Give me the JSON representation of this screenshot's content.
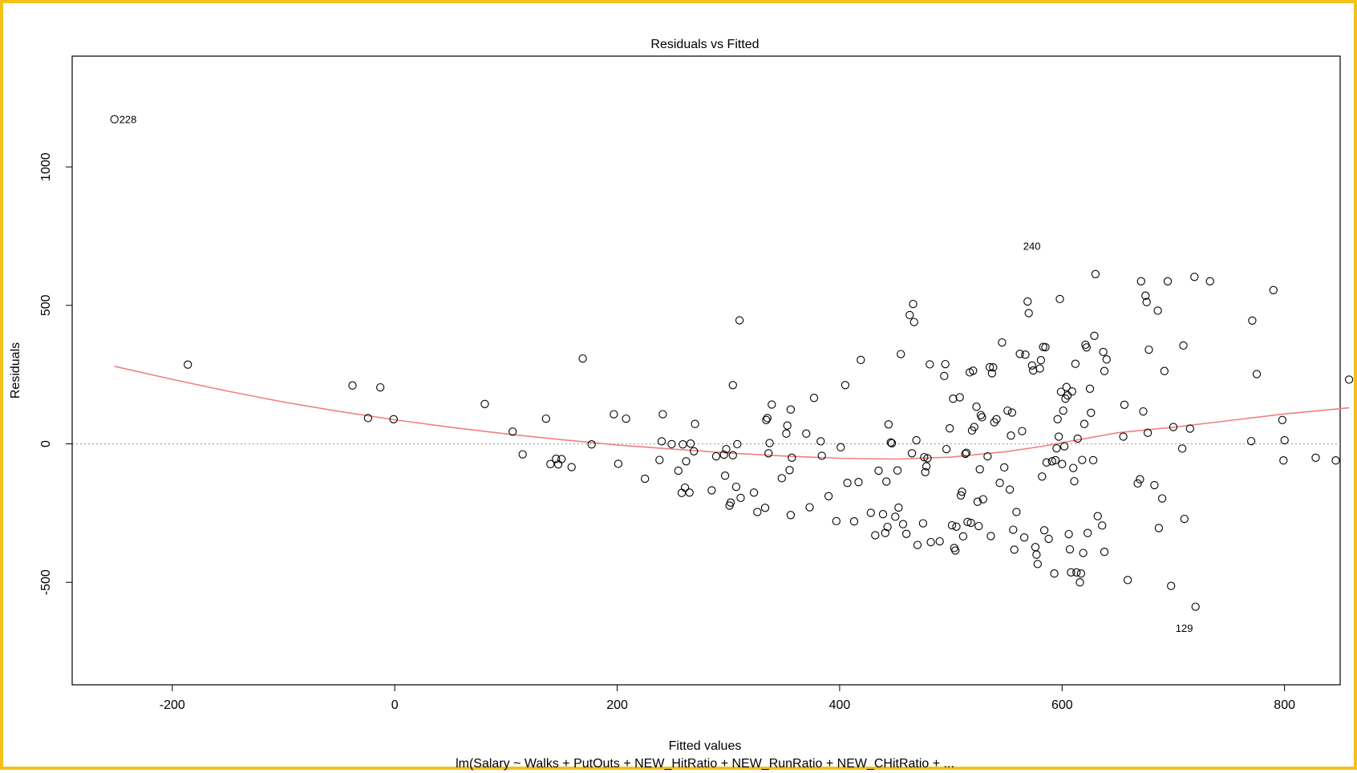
{
  "chart_data": {
    "type": "scatter",
    "title": "Residuals vs Fitted",
    "xlabel": "Fitted values",
    "ylabel": "Residuals",
    "subtitle": "lm(Salary ~ Walks + PutOuts + NEW_HitRatio + NEW_RunRatio + NEW_CHitRatio + ...",
    "xlim": [
      -290,
      850
    ],
    "ylim": [
      -870,
      1400
    ],
    "x_ticks": [
      -200,
      0,
      200,
      400,
      600,
      800
    ],
    "y_ticks": [
      -500,
      0,
      500,
      1000
    ],
    "tick_labels_x": [
      "-200",
      "0",
      "200",
      "400",
      "600",
      "800"
    ],
    "tick_labels_y": [
      "-500",
      "0",
      "500",
      "1000"
    ],
    "reference_line": 0,
    "colors": {
      "points": "#000000",
      "smoother": "#f08080",
      "reference": "#999999",
      "border": "#f2c21b"
    },
    "labeled_points": [
      {
        "label": "228",
        "x": -252,
        "y": 1172
      },
      {
        "label": "240",
        "x": 585,
        "y": 715
      },
      {
        "label": "129",
        "x": 722,
        "y": -635
      }
    ],
    "points": [
      [
        -252,
        1172
      ],
      [
        -186,
        286
      ],
      [
        -38,
        211
      ],
      [
        -24,
        93
      ],
      [
        -13,
        204
      ],
      [
        -1,
        89
      ],
      [
        81,
        144
      ],
      [
        106,
        44
      ],
      [
        115,
        -38
      ],
      [
        136,
        91
      ],
      [
        140,
        -73
      ],
      [
        145,
        -54
      ],
      [
        147,
        -74
      ],
      [
        150,
        -55
      ],
      [
        159,
        -84
      ],
      [
        169,
        308
      ],
      [
        177,
        -2
      ],
      [
        197,
        107
      ],
      [
        201,
        -72
      ],
      [
        208,
        91
      ],
      [
        225,
        -126
      ],
      [
        238,
        -58
      ],
      [
        240,
        9
      ],
      [
        241,
        107
      ],
      [
        249,
        -1
      ],
      [
        255,
        -97
      ],
      [
        258,
        -177
      ],
      [
        259,
        -2
      ],
      [
        261,
        -158
      ],
      [
        262,
        -63
      ],
      [
        265,
        -176
      ],
      [
        266,
        1
      ],
      [
        269,
        -27
      ],
      [
        270,
        72
      ],
      [
        285,
        -168
      ],
      [
        289,
        -45
      ],
      [
        296,
        -39
      ],
      [
        297,
        -115
      ],
      [
        298,
        -19
      ],
      [
        301,
        -223
      ],
      [
        302,
        -212
      ],
      [
        304,
        -41
      ],
      [
        304,
        212
      ],
      [
        307,
        -155
      ],
      [
        308,
        -1
      ],
      [
        310,
        446
      ],
      [
        311,
        -195
      ],
      [
        323,
        -176
      ],
      [
        326,
        -246
      ],
      [
        333,
        -231
      ],
      [
        334,
        86
      ],
      [
        335,
        93
      ],
      [
        336,
        -34
      ],
      [
        337,
        3
      ],
      [
        339,
        142
      ],
      [
        348,
        -124
      ],
      [
        352,
        37
      ],
      [
        353,
        66
      ],
      [
        355,
        -95
      ],
      [
        356,
        124
      ],
      [
        356,
        -257
      ],
      [
        357,
        -50
      ],
      [
        370,
        37
      ],
      [
        373,
        -229
      ],
      [
        377,
        166
      ],
      [
        383,
        9
      ],
      [
        384,
        -43
      ],
      [
        390,
        -189
      ],
      [
        397,
        -279
      ],
      [
        401,
        -12
      ],
      [
        405,
        212
      ],
      [
        407,
        -141
      ],
      [
        413,
        -280
      ],
      [
        417,
        -138
      ],
      [
        419,
        303
      ],
      [
        428,
        -249
      ],
      [
        432,
        -330
      ],
      [
        435,
        -97
      ],
      [
        439,
        -254
      ],
      [
        441,
        -322
      ],
      [
        442,
        -136
      ],
      [
        443,
        -300
      ],
      [
        444,
        70
      ],
      [
        446,
        5
      ],
      [
        447,
        2
      ],
      [
        450,
        -263
      ],
      [
        452,
        -96
      ],
      [
        453,
        -230
      ],
      [
        455,
        324
      ],
      [
        457,
        -290
      ],
      [
        460,
        -325
      ],
      [
        463,
        465
      ],
      [
        465,
        -34
      ],
      [
        466,
        505
      ],
      [
        467,
        440
      ],
      [
        469,
        13
      ],
      [
        470,
        -365
      ],
      [
        475,
        -287
      ],
      [
        476,
        -48
      ],
      [
        477,
        -102
      ],
      [
        478,
        -81
      ],
      [
        479,
        -52
      ],
      [
        481,
        287
      ],
      [
        482,
        -355
      ],
      [
        490,
        -352
      ],
      [
        494,
        245
      ],
      [
        495,
        288
      ],
      [
        496,
        -19
      ],
      [
        499,
        56
      ],
      [
        501,
        -294
      ],
      [
        502,
        163
      ],
      [
        503,
        -376
      ],
      [
        504,
        -385
      ],
      [
        505,
        -299
      ],
      [
        508,
        168
      ],
      [
        509,
        -186
      ],
      [
        510,
        -173
      ],
      [
        511,
        -334
      ],
      [
        513,
        -36
      ],
      [
        514,
        -32
      ],
      [
        515,
        -282
      ],
      [
        517,
        258
      ],
      [
        518,
        -285
      ],
      [
        519,
        48
      ],
      [
        520,
        264
      ],
      [
        521,
        61
      ],
      [
        523,
        134
      ],
      [
        524,
        -209
      ],
      [
        525,
        -297
      ],
      [
        526,
        -92
      ],
      [
        527,
        104
      ],
      [
        528,
        96
      ],
      [
        529,
        -200
      ],
      [
        533,
        -45
      ],
      [
        535,
        277
      ],
      [
        536,
        -333
      ],
      [
        537,
        255
      ],
      [
        538,
        276
      ],
      [
        539,
        78
      ],
      [
        541,
        89
      ],
      [
        544,
        -141
      ],
      [
        546,
        366
      ],
      [
        548,
        -85
      ],
      [
        551,
        120
      ],
      [
        553,
        -165
      ],
      [
        554,
        30
      ],
      [
        555,
        113
      ],
      [
        556,
        -310
      ],
      [
        557,
        -382
      ],
      [
        559,
        -246
      ],
      [
        562,
        325
      ],
      [
        564,
        46
      ],
      [
        566,
        -338
      ],
      [
        567,
        322
      ],
      [
        569,
        514
      ],
      [
        570,
        472
      ],
      [
        573,
        283
      ],
      [
        574,
        265
      ],
      [
        576,
        -373
      ],
      [
        577,
        -400
      ],
      [
        578,
        -434
      ],
      [
        580,
        272
      ],
      [
        581,
        302
      ],
      [
        582,
        -118
      ],
      [
        583,
        350
      ],
      [
        584,
        -312
      ],
      [
        585,
        349
      ],
      [
        586,
        -67
      ],
      [
        588,
        -343
      ],
      [
        591,
        -63
      ],
      [
        593,
        -468
      ],
      [
        594,
        -59
      ],
      [
        595,
        -16
      ],
      [
        596,
        89
      ],
      [
        597,
        26
      ],
      [
        598,
        523
      ],
      [
        599,
        188
      ],
      [
        600,
        -73
      ],
      [
        601,
        120
      ],
      [
        602,
        -9
      ],
      [
        603,
        163
      ],
      [
        604,
        205
      ],
      [
        605,
        175
      ],
      [
        606,
        -326
      ],
      [
        607,
        -381
      ],
      [
        608,
        -464
      ],
      [
        609,
        189
      ],
      [
        610,
        -87
      ],
      [
        611,
        -135
      ],
      [
        612,
        289
      ],
      [
        613,
        -464
      ],
      [
        614,
        19
      ],
      [
        616,
        -500
      ],
      [
        617,
        -468
      ],
      [
        618,
        -58
      ],
      [
        619,
        -394
      ],
      [
        620,
        72
      ],
      [
        621,
        358
      ],
      [
        622,
        348
      ],
      [
        623,
        -322
      ],
      [
        625,
        199
      ],
      [
        626,
        112
      ],
      [
        628,
        -59
      ],
      [
        629,
        390
      ],
      [
        630,
        613
      ],
      [
        632,
        -261
      ],
      [
        636,
        -295
      ],
      [
        637,
        332
      ],
      [
        638,
        263
      ],
      [
        638,
        -390
      ],
      [
        640,
        305
      ],
      [
        655,
        26
      ],
      [
        656,
        141
      ],
      [
        659,
        -492
      ],
      [
        668,
        -143
      ],
      [
        670,
        -128
      ],
      [
        671,
        587
      ],
      [
        673,
        117
      ],
      [
        675,
        535
      ],
      [
        676,
        512
      ],
      [
        677,
        40
      ],
      [
        678,
        340
      ],
      [
        683,
        -149
      ],
      [
        686,
        481
      ],
      [
        687,
        -304
      ],
      [
        690,
        -197
      ],
      [
        692,
        263
      ],
      [
        695,
        587
      ],
      [
        698,
        -513
      ],
      [
        700,
        61
      ],
      [
        708,
        -17
      ],
      [
        709,
        355
      ],
      [
        710,
        -271
      ],
      [
        715,
        55
      ],
      [
        719,
        603
      ],
      [
        720,
        -588
      ],
      [
        733,
        587
      ],
      [
        770,
        10
      ],
      [
        771,
        445
      ],
      [
        775,
        252
      ],
      [
        790,
        555
      ],
      [
        798,
        86
      ],
      [
        799,
        -60
      ],
      [
        800,
        13
      ],
      [
        828,
        -50
      ],
      [
        846,
        -60
      ],
      [
        858,
        232
      ]
    ],
    "smoother": [
      [
        -252,
        280
      ],
      [
        -200,
        233
      ],
      [
        -150,
        190
      ],
      [
        -100,
        151
      ],
      [
        -50,
        117
      ],
      [
        0,
        87
      ],
      [
        50,
        60
      ],
      [
        100,
        36
      ],
      [
        150,
        15
      ],
      [
        200,
        -4
      ],
      [
        250,
        -19
      ],
      [
        300,
        -33
      ],
      [
        350,
        -44
      ],
      [
        400,
        -52
      ],
      [
        450,
        -55
      ],
      [
        500,
        -48
      ],
      [
        550,
        -28
      ],
      [
        580,
        -10
      ],
      [
        600,
        4
      ],
      [
        650,
        40
      ],
      [
        700,
        60
      ],
      [
        750,
        84
      ],
      [
        800,
        108
      ],
      [
        858,
        130
      ]
    ]
  }
}
